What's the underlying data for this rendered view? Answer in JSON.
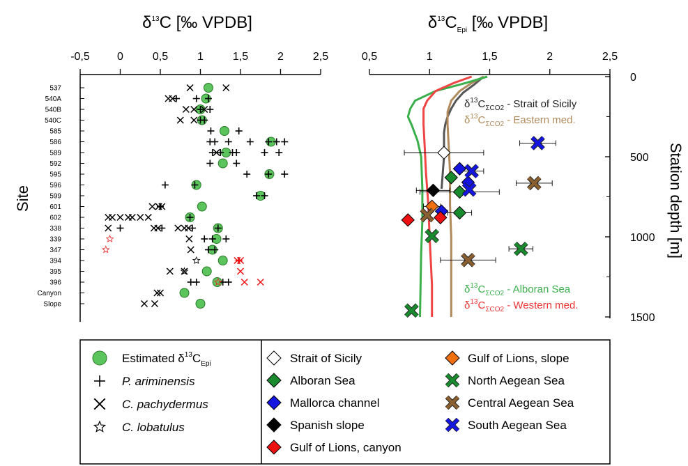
{
  "left_title_pre": "δ",
  "left_title_sup": "13",
  "left_title_post": "C [‰ VPDB]",
  "right_title_pre": "δ",
  "right_title_sup": "13",
  "right_title_main": "C",
  "right_title_sub": "Epi",
  "right_title_post": " [‰ VPDB]",
  "y_left_label": "Site",
  "y_right_label": "Station depth [m]",
  "annotations": [
    {
      "pre": "δ",
      "sup": "13",
      "main": "C",
      "sub": "ΣCO2",
      "text": " - Strait of Sicily",
      "color": "#222222"
    },
    {
      "pre": "δ",
      "sup": "13",
      "main": "C",
      "sub": "ΣCO2",
      "text": " - Eastern med.",
      "color": "#b08a5a"
    },
    {
      "pre": "δ",
      "sup": "13",
      "main": "C",
      "sub": "ΣCO2",
      "text": " - Alboran Sea",
      "color": "#3aaf4a"
    },
    {
      "pre": "δ",
      "sup": "13",
      "main": "C",
      "sub": "ΣCO2",
      "text": " - Western med.",
      "color": "#ee3333"
    }
  ],
  "legend": {
    "col1": [
      {
        "label": "Estimated δ",
        "sup": "13",
        "main": "C",
        "sub": "Epi",
        "italic": false,
        "symbol": "circle"
      },
      {
        "label": "P. ariminensis",
        "italic": true,
        "symbol": "plus"
      },
      {
        "label": "C. pachydermus",
        "italic": true,
        "symbol": "cross"
      },
      {
        "label": "C. lobatulus",
        "italic": true,
        "symbol": "star"
      }
    ],
    "col2": [
      {
        "label": "Strait of Sicily",
        "color": "#ffffff",
        "symbol": "diamond"
      },
      {
        "label": "Alboran Sea",
        "color": "#1a8a2e",
        "symbol": "diamond"
      },
      {
        "label": "Mallorca channel",
        "color": "#1515e0",
        "symbol": "diamond"
      },
      {
        "label": "Spanish slope",
        "color": "#000000",
        "symbol": "diamond"
      },
      {
        "label": "Gulf of Lions, canyon",
        "color": "#ee1111",
        "symbol": "diamond"
      }
    ],
    "col3": [
      {
        "label": "Gulf of Lions, slope",
        "color": "#f07010",
        "symbol": "diamond"
      },
      {
        "label": "North Aegean Sea",
        "color": "#1a8a2e",
        "symbol": "x"
      },
      {
        "label": "Central Aegean Sea",
        "color": "#8a6030",
        "symbol": "x"
      },
      {
        "label": "South Aegean Sea",
        "color": "#1515e0",
        "symbol": "x"
      }
    ]
  },
  "chart_data": [
    {
      "type": "scatter",
      "title": "δ13C [‰ VPDB]",
      "ylabel": "Site",
      "xlim": [
        -0.5,
        2.5
      ],
      "x_ticks": [
        "-0,5",
        "0",
        "0,5",
        "1",
        "1,5",
        "2",
        "2,5"
      ],
      "x_tick_values": [
        -0.5,
        0,
        0.5,
        1,
        1.5,
        2,
        2.5
      ],
      "sites": [
        "537",
        "540A",
        "540B",
        "540C",
        "585",
        "586",
        "589",
        "592",
        "595",
        "596",
        "599",
        "601",
        "602",
        "338",
        "339",
        "347",
        "394",
        "395",
        "396",
        "Canyon",
        "Slope"
      ],
      "estimated_epi": [
        1.1,
        1.07,
        1.0,
        1.02,
        1.3,
        1.88,
        1.32,
        1.28,
        1.86,
        0.95,
        1.75,
        1.02,
        0.87,
        1.22,
        1.2,
        1.15,
        1.28,
        1.08,
        1.21,
        0.8,
        1.0
      ],
      "p_ariminensis": [
        {
          "site": "540A",
          "x": [
            0.7,
            0.95,
            1.1
          ]
        },
        {
          "site": "540B",
          "x": [
            1.0,
            1.12
          ]
        },
        {
          "site": "540C",
          "x": [
            1.0,
            1.05
          ]
        },
        {
          "site": "585",
          "x": [
            1.13,
            1.48
          ]
        },
        {
          "site": "586",
          "x": [
            1.12,
            1.18,
            1.35,
            1.62,
            1.85,
            1.95,
            2.05
          ]
        },
        {
          "site": "589",
          "x": [
            1.15,
            1.25,
            1.4,
            1.45,
            1.8,
            1.98
          ]
        },
        {
          "site": "592",
          "x": [
            1.12,
            1.45
          ]
        },
        {
          "site": "595",
          "x": [
            1.58,
            1.85,
            2.05
          ]
        },
        {
          "site": "596",
          "x": [
            0.56,
            0.93
          ]
        },
        {
          "site": "599",
          "x": [
            1.7,
            1.8
          ]
        },
        {
          "site": "601",
          "x": [
            0.5
          ]
        },
        {
          "site": "602",
          "x": [
            0.87
          ]
        },
        {
          "site": "338",
          "x": [
            0.0,
            0.52,
            0.9,
            1.22
          ]
        },
        {
          "site": "339",
          "x": [
            1.05,
            1.15,
            1.32
          ]
        },
        {
          "site": "347",
          "x": [
            1.1,
            1.18
          ]
        },
        {
          "site": "394",
          "x": [
            1.48
          ]
        },
        {
          "site": "396",
          "x": [
            0.88,
            0.95,
            1.28,
            1.35
          ]
        }
      ],
      "c_pachydermus": [
        {
          "site": "537",
          "x": [
            0.87,
            1.32
          ]
        },
        {
          "site": "540A",
          "x": [
            0.6,
            0.65
          ]
        },
        {
          "site": "540B",
          "x": [
            0.82,
            0.92,
            1.05
          ]
        },
        {
          "site": "540C",
          "x": [
            0.75,
            0.92
          ]
        },
        {
          "site": "589",
          "x": [
            1.2
          ]
        },
        {
          "site": "601",
          "x": [
            0.4,
            0.48,
            0.52
          ]
        },
        {
          "site": "602",
          "x": [
            -0.15,
            -0.1,
            0.0,
            0.1,
            0.15,
            0.25,
            0.35
          ]
        },
        {
          "site": "338",
          "x": [
            -0.15,
            0.42,
            0.47,
            0.72,
            0.8,
            0.85
          ]
        },
        {
          "site": "339",
          "x": [
            0.86
          ]
        },
        {
          "site": "347",
          "x": [
            0.88
          ]
        },
        {
          "site": "394",
          "x": [
            1.46,
            1.5
          ]
        },
        {
          "site": "395",
          "x": [
            0.62,
            0.8,
            1.5
          ]
        },
        {
          "site": "396",
          "x": [
            1.55,
            1.75
          ]
        },
        {
          "site": "Canyon",
          "x": [
            0.46,
            0.5
          ]
        },
        {
          "site": "Slope",
          "x": [
            0.3,
            0.43
          ]
        }
      ],
      "c_lobatulus": [
        {
          "site": "339",
          "x": [
            -0.13
          ]
        },
        {
          "site": "347",
          "x": [
            -0.18
          ]
        },
        {
          "site": "394",
          "x": [
            0.95
          ]
        },
        {
          "site": "395",
          "x": [
            0.8
          ]
        },
        {
          "site": "396",
          "x": [
            1.22
          ]
        }
      ],
      "red_markers_sites": [
        "394",
        "395",
        "396"
      ]
    },
    {
      "type": "scatter",
      "title": "δ13C_Epi [‰ VPDB]",
      "ylabel": "Station depth [m]",
      "xlim": [
        0.5,
        2.5
      ],
      "ylim": [
        0,
        1500
      ],
      "x_ticks": [
        "0,5",
        "1",
        "1,5",
        "2",
        "2,5"
      ],
      "x_tick_values": [
        0.5,
        1,
        1.5,
        2,
        2.5
      ],
      "y_ticks": [
        "0",
        "500",
        "1000",
        "1500"
      ],
      "y_tick_values": [
        0,
        500,
        1000,
        1500
      ],
      "series": [
        {
          "name": "Strait of Sicily",
          "marker": "diamond",
          "color": "#ffffff",
          "points": [
            {
              "x": 1.12,
              "depth": 475,
              "xerr": 0.33
            }
          ]
        },
        {
          "name": "Alboran Sea",
          "marker": "diamond",
          "color": "#1a8a2e",
          "points": [
            {
              "x": 1.18,
              "depth": 630
            },
            {
              "x": 1.25,
              "depth": 720,
              "xerr": 0.33
            },
            {
              "x": 1.25,
              "depth": 850,
              "xerr": 0.1
            }
          ]
        },
        {
          "name": "Mallorca channel",
          "marker": "diamond",
          "color": "#1515e0",
          "points": [
            {
              "x": 1.25,
              "depth": 575
            },
            {
              "x": 1.32,
              "depth": 660
            },
            {
              "x": 1.1,
              "depth": 840
            }
          ]
        },
        {
          "name": "Spanish slope",
          "marker": "diamond",
          "color": "#000000",
          "points": [
            {
              "x": 1.03,
              "depth": 710,
              "xerr": 0.14
            }
          ]
        },
        {
          "name": "Gulf of Lions, canyon",
          "marker": "diamond",
          "color": "#ee1111",
          "points": [
            {
              "x": 0.82,
              "depth": 895
            },
            {
              "x": 1.09,
              "depth": 880
            }
          ]
        },
        {
          "name": "Gulf of Lions, slope",
          "marker": "diamond",
          "color": "#f07010",
          "points": [
            {
              "x": 1.02,
              "depth": 810,
              "xerr": 0.07
            }
          ]
        },
        {
          "name": "North Aegean Sea",
          "marker": "x",
          "color": "#1a8a2e",
          "points": [
            {
              "x": 1.76,
              "depth": 1075,
              "xerr": 0.1
            },
            {
              "x": 1.02,
              "depth": 995
            },
            {
              "x": 0.85,
              "depth": 1460
            }
          ]
        },
        {
          "name": "Central Aegean Sea",
          "marker": "x",
          "color": "#8a6030",
          "points": [
            {
              "x": 1.87,
              "depth": 665,
              "xerr": 0.15
            },
            {
              "x": 0.98,
              "depth": 865
            },
            {
              "x": 1.32,
              "depth": 1145,
              "xerr": 0.23
            }
          ]
        },
        {
          "name": "South Aegean Sea",
          "marker": "x",
          "color": "#1515e0",
          "points": [
            {
              "x": 1.9,
              "depth": 415,
              "xerr": 0.15
            },
            {
              "x": 1.35,
              "depth": 590,
              "xerr": 0.1
            },
            {
              "x": 1.33,
              "depth": 705
            }
          ]
        }
      ],
      "profiles": [
        {
          "name": "Strait of Sicily",
          "color": "#555555",
          "x": [
            1.45,
            1.37,
            1.28,
            1.22,
            1.18,
            1.15,
            1.13,
            1.12,
            1.12,
            1.12,
            1.11,
            1.1
          ],
          "depth": [
            0,
            50,
            100,
            150,
            200,
            250,
            300,
            350,
            400,
            500,
            600,
            700
          ]
        },
        {
          "name": "Eastern med.",
          "color": "#b08a5a",
          "x": [
            1.45,
            1.35,
            1.25,
            1.18,
            1.15,
            1.15,
            1.16,
            1.17,
            1.17,
            1.18,
            1.18,
            1.18
          ],
          "depth": [
            0,
            40,
            90,
            150,
            220,
            300,
            450,
            600,
            800,
            1000,
            1300,
            1500
          ]
        },
        {
          "name": "Alboran Sea",
          "color": "#3aaf4a",
          "x": [
            1.48,
            1.3,
            1.05,
            0.88,
            0.84,
            0.82,
            0.85,
            0.9,
            0.93,
            0.94,
            0.94,
            0.93,
            0.92
          ],
          "depth": [
            0,
            40,
            90,
            150,
            200,
            250,
            300,
            400,
            500,
            700,
            900,
            1100,
            1500
          ]
        },
        {
          "name": "Western med.",
          "color": "#ee4444",
          "x": [
            1.35,
            1.2,
            1.05,
            0.98,
            0.95,
            0.95,
            0.96,
            0.97,
            0.99,
            1.0,
            1.02,
            1.02
          ],
          "depth": [
            0,
            40,
            90,
            150,
            200,
            300,
            450,
            600,
            800,
            1000,
            1300,
            1500
          ]
        }
      ]
    }
  ]
}
